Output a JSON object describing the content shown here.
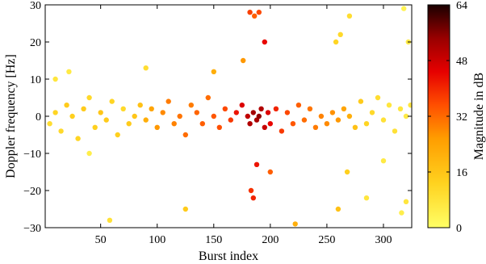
{
  "chart_data": {
    "type": "scatter",
    "title": "",
    "xlabel": "Burst index",
    "ylabel": "Doppler frequency [Hz]",
    "xlim": [
      1,
      325
    ],
    "ylim": [
      -30,
      30
    ],
    "x_ticks": [
      50,
      100,
      150,
      200,
      250,
      300
    ],
    "y_ticks": [
      -30,
      -20,
      -10,
      0,
      10,
      20,
      30
    ],
    "grid": false,
    "colorbar": {
      "label": "Magnitude in dB",
      "range": [
        0,
        64
      ],
      "ticks": [
        0,
        16,
        32,
        48,
        64
      ],
      "colormap": "hot (reversed: light yellow at 0, dark red/black at 64)",
      "colors": [
        "#ffff66",
        "#ffd21f",
        "#ff9d00",
        "#ff4f00",
        "#e60000",
        "#990000",
        "#1a0000"
      ]
    },
    "series": [
      {
        "description": "dense band of detections around 0 Hz across all bursts",
        "points": [
          [
            5,
            -2,
            8
          ],
          [
            10,
            1,
            10
          ],
          [
            15,
            -4,
            9
          ],
          [
            20,
            3,
            12
          ],
          [
            25,
            0,
            11
          ],
          [
            30,
            -6,
            10
          ],
          [
            35,
            2,
            12
          ],
          [
            40,
            5,
            9
          ],
          [
            45,
            -3,
            11
          ],
          [
            50,
            1,
            13
          ],
          [
            55,
            -1,
            12
          ],
          [
            60,
            4,
            10
          ],
          [
            65,
            -5,
            11
          ],
          [
            70,
            2,
            9
          ],
          [
            75,
            -2,
            12
          ],
          [
            80,
            0,
            13
          ],
          [
            85,
            3,
            14
          ],
          [
            90,
            -1,
            18
          ],
          [
            95,
            2,
            20
          ],
          [
            100,
            -3,
            22
          ],
          [
            105,
            1,
            24
          ],
          [
            110,
            4,
            26
          ],
          [
            115,
            -2,
            25
          ],
          [
            120,
            0,
            27
          ],
          [
            125,
            -5,
            28
          ],
          [
            130,
            3,
            26
          ],
          [
            135,
            1,
            29
          ],
          [
            140,
            -2,
            30
          ],
          [
            145,
            5,
            28
          ],
          [
            150,
            0,
            31
          ],
          [
            155,
            -3,
            32
          ],
          [
            160,
            2,
            33
          ],
          [
            165,
            -1,
            35
          ],
          [
            170,
            1,
            40
          ],
          [
            175,
            3,
            44
          ],
          [
            180,
            0,
            48
          ],
          [
            182,
            -2,
            50
          ],
          [
            185,
            1,
            52
          ],
          [
            188,
            -1,
            51
          ],
          [
            190,
            0,
            54
          ],
          [
            192,
            2,
            50
          ],
          [
            195,
            -3,
            47
          ],
          [
            198,
            1,
            44
          ],
          [
            200,
            -2,
            42
          ],
          [
            205,
            2,
            38
          ],
          [
            210,
            -4,
            35
          ],
          [
            215,
            1,
            33
          ],
          [
            220,
            -2,
            31
          ],
          [
            225,
            3,
            30
          ],
          [
            230,
            -1,
            28
          ],
          [
            235,
            2,
            27
          ],
          [
            240,
            -3,
            26
          ],
          [
            245,
            0,
            25
          ],
          [
            250,
            -2,
            24
          ],
          [
            255,
            1,
            23
          ],
          [
            260,
            -1,
            22
          ],
          [
            265,
            2,
            20
          ],
          [
            270,
            0,
            18
          ],
          [
            275,
            -3,
            14
          ],
          [
            280,
            4,
            12
          ],
          [
            285,
            -2,
            10
          ],
          [
            290,
            1,
            9
          ],
          [
            295,
            5,
            8
          ],
          [
            300,
            -1,
            7
          ],
          [
            305,
            3,
            6
          ],
          [
            310,
            -4,
            7
          ],
          [
            315,
            2,
            6
          ],
          [
            320,
            0,
            5
          ],
          [
            324,
            3,
            6
          ]
        ]
      },
      {
        "description": "scattered outlier detections",
        "points": [
          [
            10,
            10,
            6
          ],
          [
            22,
            12,
            5
          ],
          [
            40,
            -10,
            4
          ],
          [
            58,
            -28,
            7
          ],
          [
            90,
            13,
            8
          ],
          [
            125,
            -25,
            12
          ],
          [
            150,
            12,
            18
          ],
          [
            176,
            15,
            22
          ],
          [
            182,
            28,
            34
          ],
          [
            186,
            27,
            30
          ],
          [
            190,
            28,
            33
          ],
          [
            183,
            -20,
            36
          ],
          [
            185,
            -22,
            38
          ],
          [
            188,
            -13,
            40
          ],
          [
            195,
            20,
            42
          ],
          [
            200,
            -15,
            30
          ],
          [
            222,
            -29,
            18
          ],
          [
            258,
            20,
            10
          ],
          [
            262,
            22,
            9
          ],
          [
            260,
            -25,
            14
          ],
          [
            270,
            27,
            8
          ],
          [
            268,
            -15,
            11
          ],
          [
            285,
            -22,
            6
          ],
          [
            300,
            -12,
            5
          ],
          [
            316,
            -26,
            4
          ],
          [
            318,
            29,
            3
          ],
          [
            320,
            -23,
            6
          ],
          [
            322,
            20,
            5
          ]
        ]
      }
    ]
  }
}
